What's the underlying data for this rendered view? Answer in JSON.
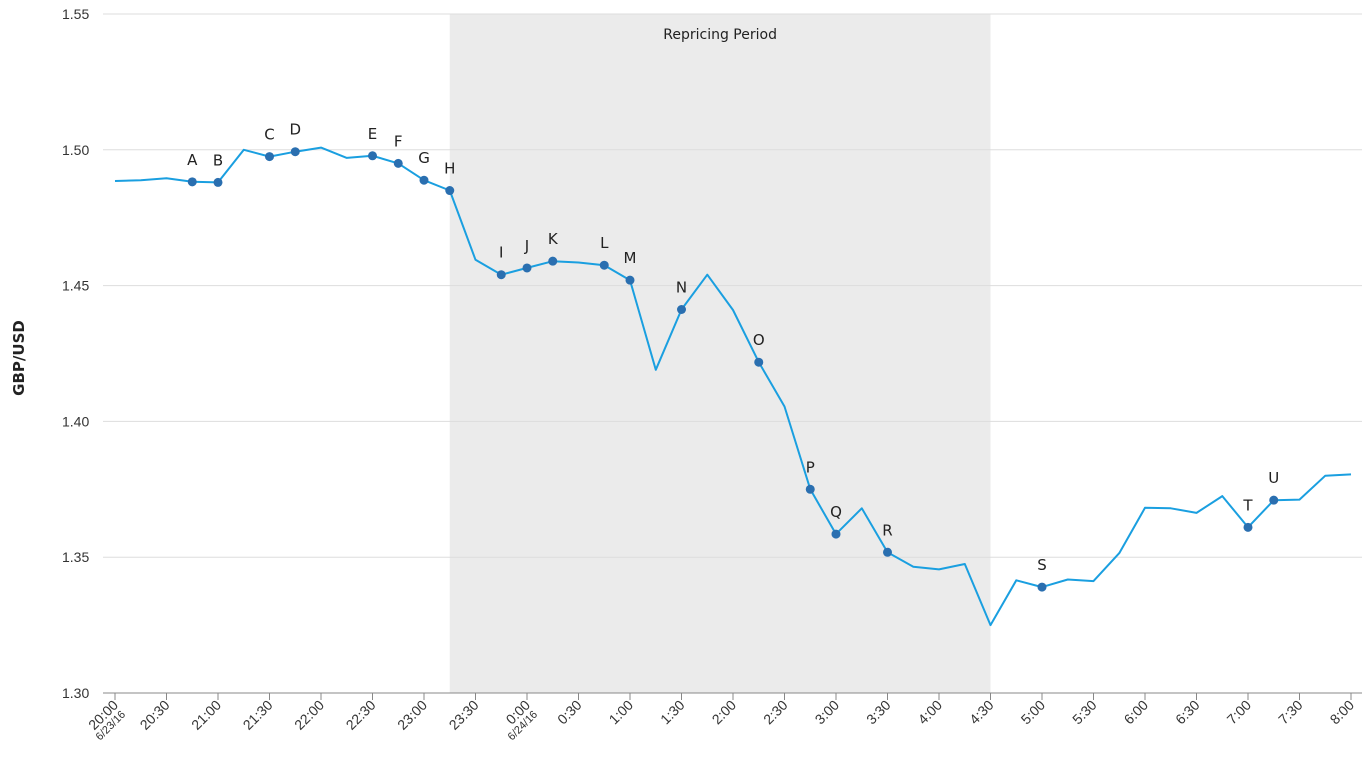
{
  "chart_data": {
    "type": "line",
    "ylabel": "GBP/USD",
    "ylim": [
      1.3,
      1.55
    ],
    "yticks": [
      "1.30",
      "1.35",
      "1.40",
      "1.45",
      "1.50",
      "1.55"
    ],
    "x_ticks": [
      "20:00",
      "20:30",
      "21:00",
      "21:30",
      "22:00",
      "22:30",
      "23:00",
      "23:30",
      "0:00",
      "0:30",
      "1:00",
      "1:30",
      "2:00",
      "2:30",
      "3:00",
      "3:30",
      "4:00",
      "4:30",
      "5:00",
      "5:30",
      "6:00",
      "6:30",
      "7:00",
      "7:30",
      "8:00"
    ],
    "date_labels": [
      {
        "at": "20:00",
        "text": "6/23/16"
      },
      {
        "at": "0:00",
        "text": "6/24/16"
      }
    ],
    "shaded_region": {
      "label": "Repricing Period",
      "from": "23:15",
      "to": "4:30"
    },
    "series": [
      {
        "color": "#1a9fe0",
        "x": [
          "20:00",
          "20:15",
          "20:30",
          "20:45",
          "21:00",
          "21:15",
          "21:30",
          "21:45",
          "22:00",
          "22:15",
          "22:30",
          "22:45",
          "23:00",
          "23:15",
          "23:30",
          "23:45",
          "0:00",
          "0:15",
          "0:30",
          "0:45",
          "1:00",
          "1:15",
          "1:30",
          "1:45",
          "2:00",
          "2:15",
          "2:30",
          "2:45",
          "3:00",
          "3:15",
          "3:30",
          "3:45",
          "4:00",
          "4:15",
          "4:30",
          "4:45",
          "5:00",
          "5:15",
          "5:30",
          "5:45",
          "6:00",
          "6:15",
          "6:30",
          "6:45",
          "7:00",
          "7:15",
          "7:30",
          "7:45",
          "8:00"
        ],
        "values": [
          1.4885,
          1.4888,
          1.4895,
          1.4882,
          1.488,
          1.5,
          1.4975,
          1.4993,
          1.5008,
          1.497,
          1.4978,
          1.495,
          1.4888,
          1.485,
          1.4595,
          1.454,
          1.4565,
          1.459,
          1.4585,
          1.4575,
          1.452,
          1.419,
          1.4412,
          1.454,
          1.441,
          1.4218,
          1.4055,
          1.375,
          1.3585,
          1.368,
          1.3518,
          1.3465,
          1.3455,
          1.3475,
          1.325,
          1.3415,
          1.339,
          1.3418,
          1.3412,
          1.3515,
          1.3682,
          1.368,
          1.3663,
          1.3725,
          1.361,
          1.371,
          1.3712,
          1.38,
          1.3805
        ]
      }
    ],
    "marker_color": "#2a6fb0",
    "annotated_points": [
      {
        "label": "A",
        "x": "20:45",
        "y": 1.4882
      },
      {
        "label": "B",
        "x": "21:00",
        "y": 1.488
      },
      {
        "label": "C",
        "x": "21:30",
        "y": 1.4975
      },
      {
        "label": "D",
        "x": "21:45",
        "y": 1.4993
      },
      {
        "label": "E",
        "x": "22:30",
        "y": 1.4978
      },
      {
        "label": "F",
        "x": "22:45",
        "y": 1.495
      },
      {
        "label": "G",
        "x": "23:00",
        "y": 1.4888
      },
      {
        "label": "H",
        "x": "23:15",
        "y": 1.485
      },
      {
        "label": "I",
        "x": "23:45",
        "y": 1.454
      },
      {
        "label": "J",
        "x": "0:00",
        "y": 1.4565
      },
      {
        "label": "K",
        "x": "0:15",
        "y": 1.459
      },
      {
        "label": "L",
        "x": "0:45",
        "y": 1.4575
      },
      {
        "label": "M",
        "x": "1:00",
        "y": 1.452
      },
      {
        "label": "N",
        "x": "1:30",
        "y": 1.4412
      },
      {
        "label": "O",
        "x": "2:15",
        "y": 1.4218
      },
      {
        "label": "P",
        "x": "2:45",
        "y": 1.375
      },
      {
        "label": "Q",
        "x": "3:00",
        "y": 1.3585
      },
      {
        "label": "R",
        "x": "3:30",
        "y": 1.3518
      },
      {
        "label": "S",
        "x": "5:00",
        "y": 1.339
      },
      {
        "label": "T",
        "x": "7:00",
        "y": 1.361
      },
      {
        "label": "U",
        "x": "7:15",
        "y": 1.371
      }
    ],
    "grid": true
  }
}
